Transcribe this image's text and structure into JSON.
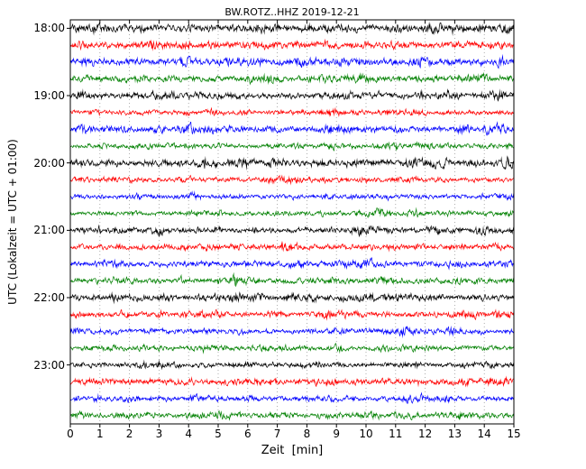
{
  "figure": {
    "title": "BW.ROTZ..HHZ 2019-12-21",
    "xlabel": "Zeit  [min]",
    "ylabel": "UTC (Lokalzeit = UTC + 01:00)"
  },
  "chart_data": {
    "type": "line",
    "subtype": "seismogram-helicorder-dayplot",
    "station": "BW.ROTZ..HHZ",
    "date": "2019-12-21",
    "title": "BW.ROTZ..HHZ 2019-12-21",
    "xlabel": "Zeit  [min]",
    "ylabel": "UTC (Lokalzeit = UTC + 01:00)",
    "x_range": [
      0,
      15
    ],
    "x_ticks": [
      "0",
      "1",
      "2",
      "3",
      "4",
      "5",
      "6",
      "7",
      "8",
      "9",
      "10",
      "11",
      "12",
      "13",
      "14",
      "15"
    ],
    "minutes_per_row": 15,
    "rows_per_hour": 4,
    "n_rows": 24,
    "color_cycle": [
      "#000000",
      "#ff0000",
      "#0000ff",
      "#008000"
    ],
    "grid": {
      "vertical_dotted_every_minute": true,
      "horizontal": false
    },
    "content_description": "continuous ambient seismic noise traces, no distinct large events",
    "y_tick_labels": [
      {
        "label": "18:00",
        "row": 0
      },
      {
        "label": "19:00",
        "row": 4
      },
      {
        "label": "20:00",
        "row": 8
      },
      {
        "label": "21:00",
        "row": 12
      },
      {
        "label": "22:00",
        "row": 16
      },
      {
        "label": "23:00",
        "row": 20
      }
    ],
    "rows": [
      {
        "start": "18:00",
        "color": "#000000"
      },
      {
        "start": "18:15",
        "color": "#ff0000"
      },
      {
        "start": "18:30",
        "color": "#0000ff"
      },
      {
        "start": "18:45",
        "color": "#008000"
      },
      {
        "start": "19:00",
        "color": "#000000"
      },
      {
        "start": "19:15",
        "color": "#ff0000"
      },
      {
        "start": "19:30",
        "color": "#0000ff"
      },
      {
        "start": "19:45",
        "color": "#008000"
      },
      {
        "start": "20:00",
        "color": "#000000"
      },
      {
        "start": "20:15",
        "color": "#ff0000"
      },
      {
        "start": "20:30",
        "color": "#0000ff"
      },
      {
        "start": "20:45",
        "color": "#008000"
      },
      {
        "start": "21:00",
        "color": "#000000"
      },
      {
        "start": "21:15",
        "color": "#ff0000"
      },
      {
        "start": "21:30",
        "color": "#0000ff"
      },
      {
        "start": "21:45",
        "color": "#008000"
      },
      {
        "start": "22:00",
        "color": "#000000"
      },
      {
        "start": "22:15",
        "color": "#ff0000"
      },
      {
        "start": "22:30",
        "color": "#0000ff"
      },
      {
        "start": "22:45",
        "color": "#008000"
      },
      {
        "start": "23:00",
        "color": "#000000"
      },
      {
        "start": "23:15",
        "color": "#ff0000"
      },
      {
        "start": "23:30",
        "color": "#0000ff"
      },
      {
        "start": "23:45",
        "color": "#008000"
      }
    ]
  }
}
